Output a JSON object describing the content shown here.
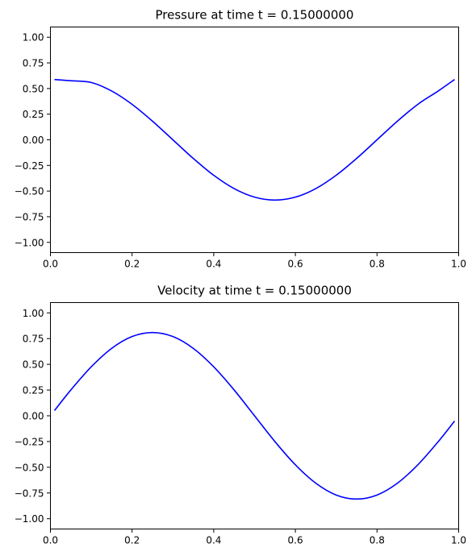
{
  "chart_data": [
    {
      "type": "line",
      "title": "Pressure at time t =      0.15000000",
      "xlabel": "",
      "ylabel": "",
      "xlim": [
        0,
        1
      ],
      "ylim": [
        -1.1,
        1.1
      ],
      "x_ticks": [
        0.0,
        0.2,
        0.4,
        0.6,
        0.8,
        1.0
      ],
      "x_tick_labels": [
        "0.0",
        "0.2",
        "0.4",
        "0.6",
        "0.8",
        "1.0"
      ],
      "y_ticks": [
        1.0,
        0.75,
        0.5,
        0.25,
        0.0,
        -0.25,
        -0.5,
        -0.75,
        -1.0
      ],
      "y_tick_labels": [
        "1.00",
        "0.75",
        "0.50",
        "0.25",
        "0.00",
        "−0.25",
        "−0.50",
        "−0.75",
        "−1.00"
      ],
      "grid": false,
      "color": "#0000ff",
      "series": [
        {
          "x": [
            0.01,
            0.05,
            0.1,
            0.15,
            0.2,
            0.25,
            0.3,
            0.35,
            0.4,
            0.45,
            0.5,
            0.55,
            0.6,
            0.65,
            0.7,
            0.75,
            0.8,
            0.85,
            0.9,
            0.95,
            0.99
          ],
          "y": [
            0.588,
            0.576,
            0.559,
            0.476,
            0.346,
            0.182,
            0.0,
            -0.182,
            -0.346,
            -0.476,
            -0.559,
            -0.588,
            -0.559,
            -0.476,
            -0.346,
            -0.182,
            0.0,
            0.182,
            0.346,
            0.476,
            0.588
          ]
        }
      ]
    },
    {
      "type": "line",
      "title": "Velocity at time t =      0.15000000",
      "xlabel": "",
      "ylabel": "",
      "xlim": [
        0,
        1
      ],
      "ylim": [
        -1.1,
        1.1
      ],
      "x_ticks": [
        0.0,
        0.2,
        0.4,
        0.6,
        0.8,
        1.0
      ],
      "x_tick_labels": [
        "0.0",
        "0.2",
        "0.4",
        "0.6",
        "0.8",
        "1.0"
      ],
      "y_ticks": [
        1.0,
        0.75,
        0.5,
        0.25,
        0.0,
        -0.25,
        -0.5,
        -0.75,
        -1.0
      ],
      "y_tick_labels": [
        "1.00",
        "0.75",
        "0.50",
        "0.25",
        "0.00",
        "−0.25",
        "−0.50",
        "−0.75",
        "−1.00"
      ],
      "grid": false,
      "color": "#0000ff",
      "series": [
        {
          "x": [
            0.01,
            0.05,
            0.1,
            0.15,
            0.2,
            0.25,
            0.3,
            0.35,
            0.4,
            0.45,
            0.5,
            0.55,
            0.6,
            0.65,
            0.7,
            0.75,
            0.8,
            0.85,
            0.9,
            0.95,
            0.99
          ],
          "y": [
            0.051,
            0.251,
            0.476,
            0.655,
            0.77,
            0.809,
            0.77,
            0.655,
            0.476,
            0.251,
            0.0,
            -0.251,
            -0.476,
            -0.655,
            -0.77,
            -0.809,
            -0.77,
            -0.655,
            -0.476,
            -0.251,
            -0.051
          ]
        }
      ]
    }
  ]
}
